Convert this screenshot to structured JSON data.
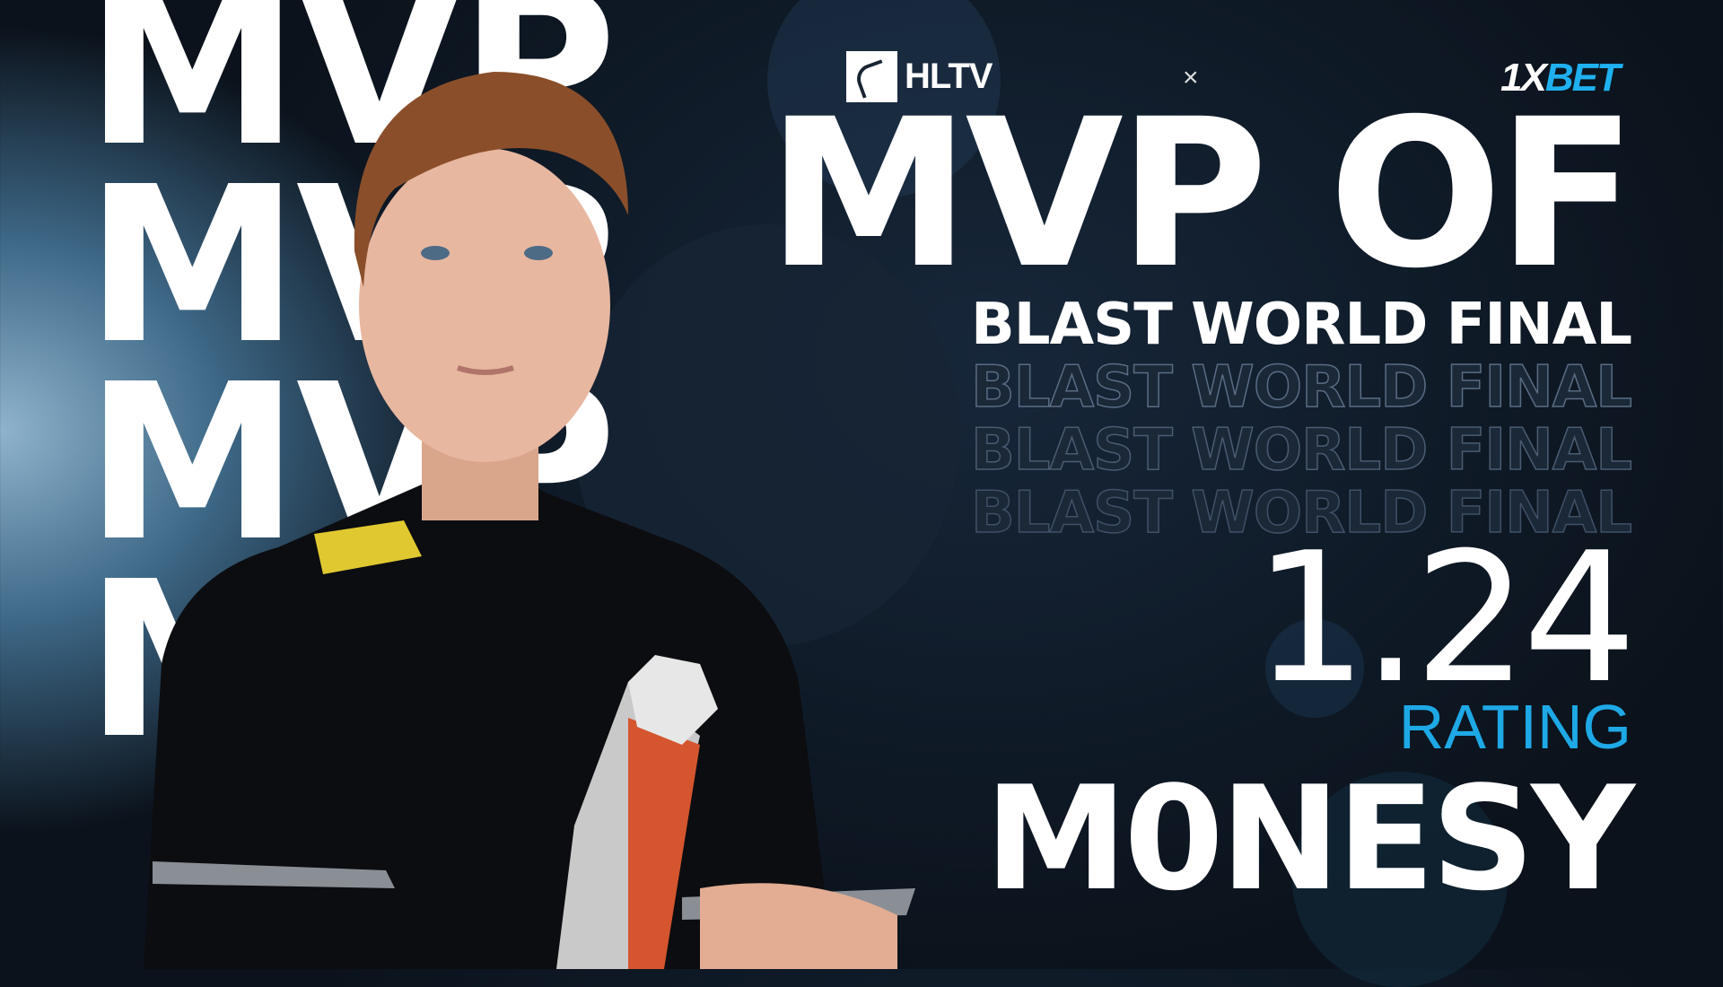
{
  "background_text": [
    "MVP",
    "MVP",
    "MVP",
    "MVP"
  ],
  "brand": {
    "hltv_label": "HLTV",
    "separator": "×",
    "sponsor_prefix": "1X",
    "sponsor_suffix": "BET"
  },
  "headline": "MVP OF",
  "event": "BLAST WORLD FINAL",
  "event_echo": [
    "BLAST WORLD FINAL",
    "BLAST WORLD FINAL",
    "BLAST WORLD FINAL"
  ],
  "rating": {
    "value": "1.24",
    "label": "RATING"
  },
  "player": {
    "name": "M0NESY"
  },
  "colors": {
    "accent": "#1ea9e6",
    "sponsor_blue": "#1fb0f0",
    "background": "#0f1a27"
  }
}
